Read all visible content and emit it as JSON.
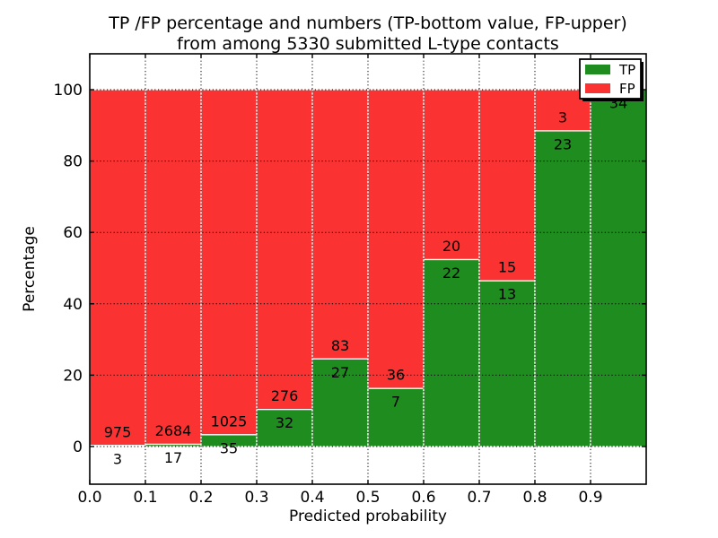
{
  "title": {
    "line1": "TP /FP percentage and numbers (TP-bottom value, FP-upper)",
    "line2": "from among 5330 submitted L-type contacts"
  },
  "chart_data": {
    "type": "bar",
    "stacked": true,
    "title": "TP /FP percentage and numbers (TP-bottom value, FP-upper) from among 5330 submitted L-type contacts",
    "xlabel": "Predicted probability",
    "ylabel": "Percentage",
    "categories": [
      "0.0",
      "0.1",
      "0.2",
      "0.3",
      "0.4",
      "0.5",
      "0.6",
      "0.7",
      "0.8",
      "0.9"
    ],
    "x_ticks": [
      "0.0",
      "0.1",
      "0.2",
      "0.3",
      "0.4",
      "0.5",
      "0.6",
      "0.7",
      "0.8",
      "0.9"
    ],
    "y_ticks": [
      0,
      20,
      40,
      60,
      80,
      100
    ],
    "ylim": [
      -10.5,
      110
    ],
    "xlim": [
      0.0,
      1.0
    ],
    "grid": true,
    "legend_position": "upper right",
    "series": [
      {
        "name": "TP",
        "color": "#1e8c1e",
        "values": [
          3,
          17,
          35,
          32,
          27,
          7,
          22,
          13,
          23,
          34
        ]
      },
      {
        "name": "FP",
        "color": "#fa3232",
        "values": [
          975,
          2684,
          1025,
          276,
          83,
          36,
          20,
          15,
          3,
          0
        ]
      }
    ],
    "tp_percent_heights": [
      0.31,
      0.63,
      3.3,
      10.39,
      24.55,
      16.28,
      52.38,
      46.43,
      88.46,
      100.0
    ]
  }
}
